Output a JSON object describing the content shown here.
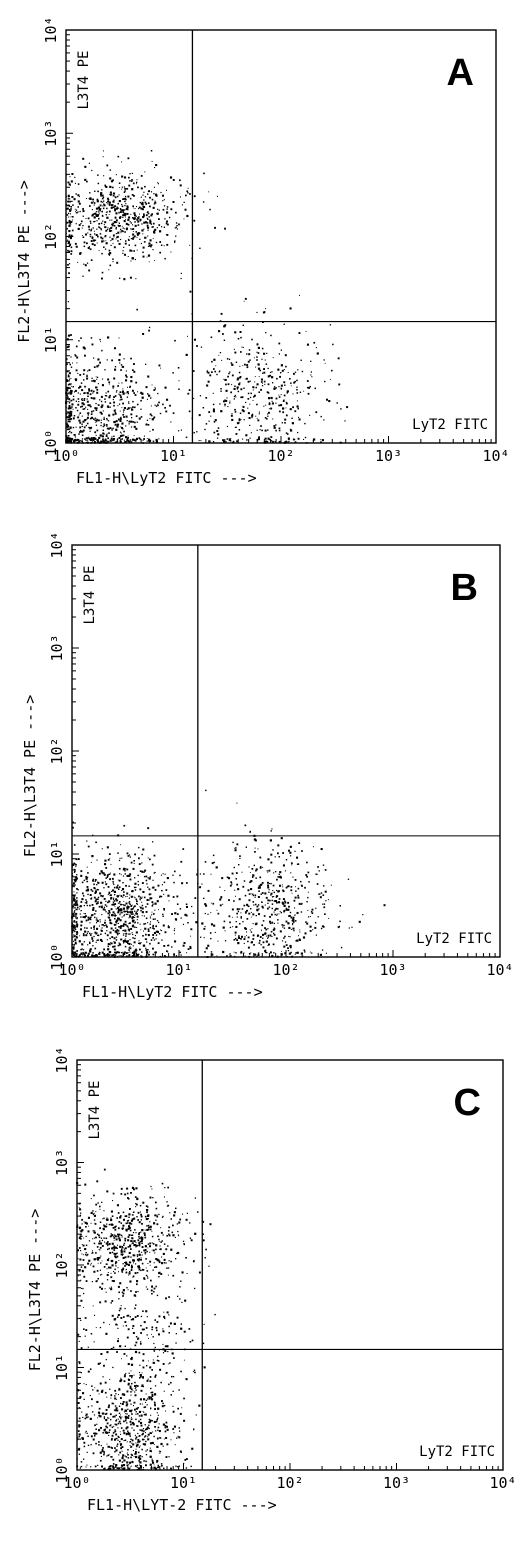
{
  "chart_data": [
    {
      "type": "scatter",
      "panel_label": "A",
      "xlabel": "FL1-H\\LyT2 FITC --->",
      "ylabel": "FL2-H\\L3T4 PE --->",
      "xscale": "log",
      "yscale": "log",
      "xlim": [
        1,
        10000
      ],
      "ylim": [
        1,
        10000
      ],
      "x_ticks": [
        "10⁰",
        "10¹",
        "10²",
        "10³",
        "10⁴"
      ],
      "y_ticks": [
        "10⁰",
        "10¹",
        "10²",
        "10³",
        "10⁴"
      ],
      "gate": {
        "x": 15,
        "y": 15
      },
      "quadrant_labels": {
        "upper_left": "L3T4 PE",
        "lower_right": "LyT2 FITC"
      },
      "populations": [
        {
          "name": "",
          "x_center": 3,
          "y_center": 150,
          "x_spread": 0.32,
          "y_spread": 0.22,
          "points": 700
        },
        {
          "name": "",
          "x_center": 2,
          "y_center": 2,
          "x_spread": 0.3,
          "y_spread": 0.3,
          "points": 700
        },
        {
          "name": "",
          "x_center": 60,
          "y_center": 3,
          "x_spread": 0.3,
          "y_spread": 0.35,
          "points": 450
        }
      ]
    },
    {
      "type": "scatter",
      "panel_label": "B",
      "xlabel": "FL1-H\\LyT2 FITC --->",
      "ylabel": "FL2-H\\L3T4 PE --->",
      "xscale": "log",
      "yscale": "log",
      "xlim": [
        1,
        10000
      ],
      "ylim": [
        1,
        10000
      ],
      "x_ticks": [
        "10⁰",
        "10¹",
        "10²",
        "10³",
        "10⁴"
      ],
      "y_ticks": [
        "10⁰",
        "10¹",
        "10²",
        "10³",
        "10⁴"
      ],
      "gate": {
        "x": 15,
        "y": 15
      },
      "quadrant_labels": {
        "upper_left": "L3T4 PE",
        "lower_right": "LyT2 FITC"
      },
      "populations": [
        {
          "name": "",
          "x_center": 2.5,
          "y_center": 2.5,
          "x_spread": 0.32,
          "y_spread": 0.3,
          "points": 1000
        },
        {
          "name": "",
          "x_center": 70,
          "y_center": 3,
          "x_spread": 0.3,
          "y_spread": 0.32,
          "points": 550
        }
      ]
    },
    {
      "type": "scatter",
      "panel_label": "C",
      "xlabel": "FL1-H\\LYT-2 FITC --->",
      "ylabel": "FL2-H\\L3T4 PE --->",
      "xscale": "log",
      "yscale": "log",
      "xlim": [
        1,
        10000
      ],
      "ylim": [
        1,
        10000
      ],
      "x_ticks": [
        "10⁰",
        "10¹",
        "10²",
        "10³",
        "10⁴"
      ],
      "y_ticks": [
        "10⁰",
        "10¹",
        "10²",
        "10³",
        "10⁴"
      ],
      "gate": {
        "x": 15,
        "y": 15
      },
      "quadrant_labels": {
        "upper_left": "L3T4 PE",
        "lower_right": "LyT2 FITC"
      },
      "populations": [
        {
          "name": "",
          "x_center": 3,
          "y_center": 150,
          "x_spread": 0.28,
          "y_spread": 0.25,
          "points": 650
        },
        {
          "name": "",
          "x_center": 3,
          "y_center": 2.5,
          "x_spread": 0.25,
          "y_spread": 0.28,
          "points": 650
        },
        {
          "name": "",
          "x_center": 3.5,
          "y_center": 20,
          "x_spread": 0.3,
          "y_spread": 0.3,
          "points": 200
        }
      ]
    }
  ]
}
